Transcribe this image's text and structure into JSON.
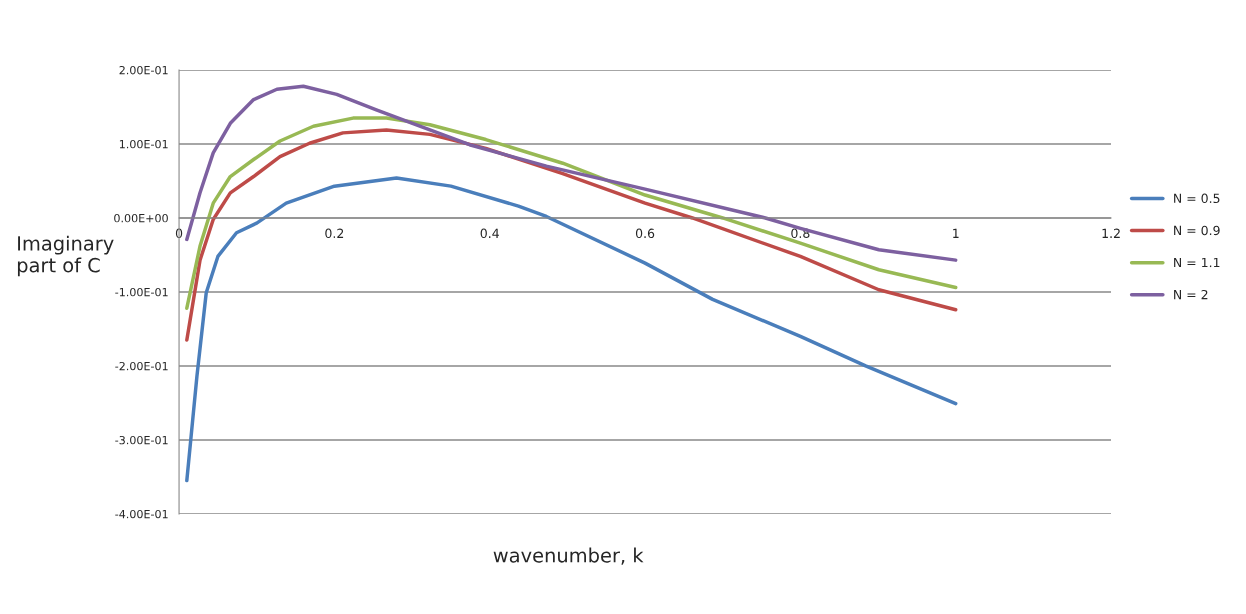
{
  "chart_data": {
    "type": "line",
    "xlabel": "wavenumber, k",
    "ylabel": "Imaginary\npart of C",
    "xlim": [
      0,
      1.2
    ],
    "xticks": [
      0,
      0.2,
      0.4,
      0.6,
      0.8,
      1,
      1.2
    ],
    "ylim": [
      -0.4,
      0.2
    ],
    "yticks": [
      {
        "value": -0.4,
        "label": "-4.00E-01"
      },
      {
        "value": -0.3,
        "label": "-3.00E-01"
      },
      {
        "value": -0.2,
        "label": "-2.00E-01"
      },
      {
        "value": -0.1,
        "label": "-1.00E-01"
      },
      {
        "value": 0,
        "label": "0.00E+00"
      },
      {
        "value": 0.1,
        "label": "1.00E-01"
      },
      {
        "value": 0.2,
        "label": "2.00E-01"
      }
    ],
    "grid": "y",
    "legend": "right",
    "marker": "none",
    "line_style": "solid",
    "series": [
      {
        "name": "N = 0.5",
        "color": "#4a7ebb",
        "x": [
          0.01,
          0.023,
          0.035,
          0.05,
          0.074,
          0.1,
          0.138,
          0.2,
          0.28,
          0.35,
          0.437,
          0.473,
          0.6,
          0.687,
          0.8,
          0.884,
          1
        ],
        "values": [
          -0.355,
          -0.214,
          -0.101,
          -0.052,
          -0.02,
          -0.007,
          0.02,
          0.043,
          0.054,
          0.043,
          0.016,
          0.002,
          -0.061,
          -0.11,
          -0.16,
          -0.2,
          -0.251
        ]
      },
      {
        "name": "N = 0.9",
        "color": "#be4b48",
        "x": [
          0.01,
          0.027,
          0.044,
          0.066,
          0.096,
          0.13,
          0.168,
          0.211,
          0.267,
          0.323,
          0.395,
          0.494,
          0.6,
          0.661,
          0.8,
          0.901,
          1
        ],
        "values": [
          -0.165,
          -0.057,
          -0.002,
          0.034,
          0.056,
          0.083,
          0.101,
          0.115,
          0.119,
          0.113,
          0.094,
          0.06,
          0.02,
          0.0,
          -0.052,
          -0.097,
          -0.124
        ]
      },
      {
        "name": "N = 1.1",
        "color": "#98b954",
        "x": [
          0.01,
          0.027,
          0.044,
          0.066,
          0.096,
          0.13,
          0.173,
          0.224,
          0.267,
          0.323,
          0.395,
          0.494,
          0.6,
          0.7,
          0.8,
          0.901,
          1
        ],
        "values": [
          -0.122,
          -0.038,
          0.02,
          0.056,
          0.079,
          0.104,
          0.124,
          0.135,
          0.135,
          0.126,
          0.106,
          0.074,
          0.031,
          0.0,
          -0.034,
          -0.07,
          -0.094
        ]
      },
      {
        "name": "N = 2",
        "color": "#7d60a0",
        "x": [
          0.01,
          0.027,
          0.044,
          0.066,
          0.096,
          0.126,
          0.16,
          0.203,
          0.254,
          0.31,
          0.374,
          0.473,
          0.6,
          0.755,
          0.8,
          0.901,
          1
        ],
        "values": [
          -0.029,
          0.034,
          0.088,
          0.128,
          0.16,
          0.174,
          0.178,
          0.167,
          0.146,
          0.124,
          0.099,
          0.07,
          0.039,
          0.0,
          -0.014,
          -0.043,
          -0.057
        ]
      }
    ]
  }
}
